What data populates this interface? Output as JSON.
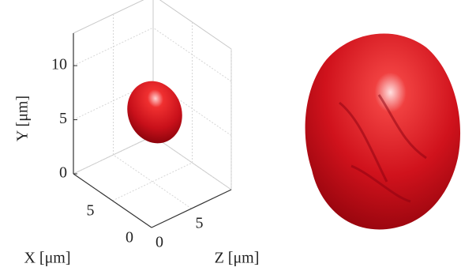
{
  "chart_data": {
    "type": "surface3d",
    "xlabel": "X [μm]",
    "ylabel": "Y [μm]",
    "zlabel": "Z [μm]",
    "xlim": [
      0,
      10
    ],
    "xticks": [
      0,
      5
    ],
    "ylim": [
      0,
      13
    ],
    "yticks": [
      0,
      5,
      10
    ],
    "zlim": [
      0,
      10
    ],
    "zticks": [
      0,
      5
    ],
    "grid": true,
    "color": "#d4101c"
  }
}
